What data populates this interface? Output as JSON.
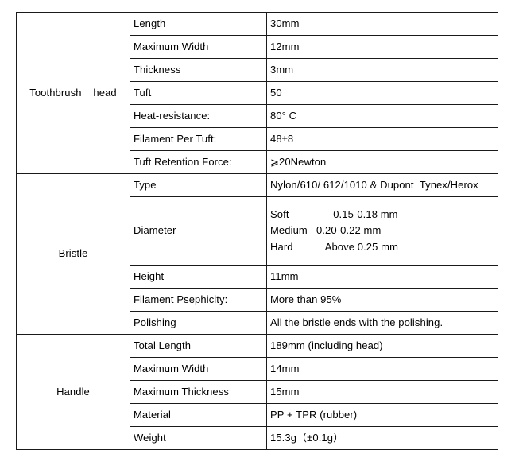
{
  "page": {
    "background_color": "#ffffff",
    "border_color": "#1a1a1a",
    "text_color": "#000000"
  },
  "table": {
    "sections": [
      {
        "name": "Toothbrush    head",
        "rows": [
          {
            "label": "Length",
            "value": "30mm"
          },
          {
            "label": "Maximum Width",
            "value": "12mm"
          },
          {
            "label": "Thickness",
            "value": "3mm"
          },
          {
            "label": "Tuft",
            "value": "50"
          },
          {
            "label": "Heat-resistance:",
            "value": "80° C"
          },
          {
            "label": "Filament Per Tuft:",
            "value": "48±8"
          },
          {
            "label": "Tuft Retention Force:",
            "value": "⩾20Newton"
          }
        ]
      },
      {
        "name": "Bristle",
        "rows": [
          {
            "label": "Type",
            "value": "Nylon/610/ 612/1010 & Dupont  Tynex/Herox"
          },
          {
            "label": "Diameter",
            "value": "Soft               0.15-0.18 mm\nMedium   0.20-0.22 mm\nHard           Above 0.25 mm"
          },
          {
            "label": "Height",
            "value": "11mm"
          },
          {
            "label": "Filament Psephicity:",
            "value": "More than 95%"
          },
          {
            "label": "Polishing",
            "value": "All the bristle ends with the polishing."
          }
        ]
      },
      {
        "name": "Handle",
        "rows": [
          {
            "label": "Total Length",
            "value": "189mm (including head)"
          },
          {
            "label": "Maximum Width",
            "value": "14mm"
          },
          {
            "label": "Maximum Thickness",
            "value": "15mm"
          },
          {
            "label": "Material",
            "value": "PP + TPR (rubber)"
          },
          {
            "label": "Weight",
            "value": "15.3g（±0.1g）"
          }
        ]
      }
    ]
  }
}
